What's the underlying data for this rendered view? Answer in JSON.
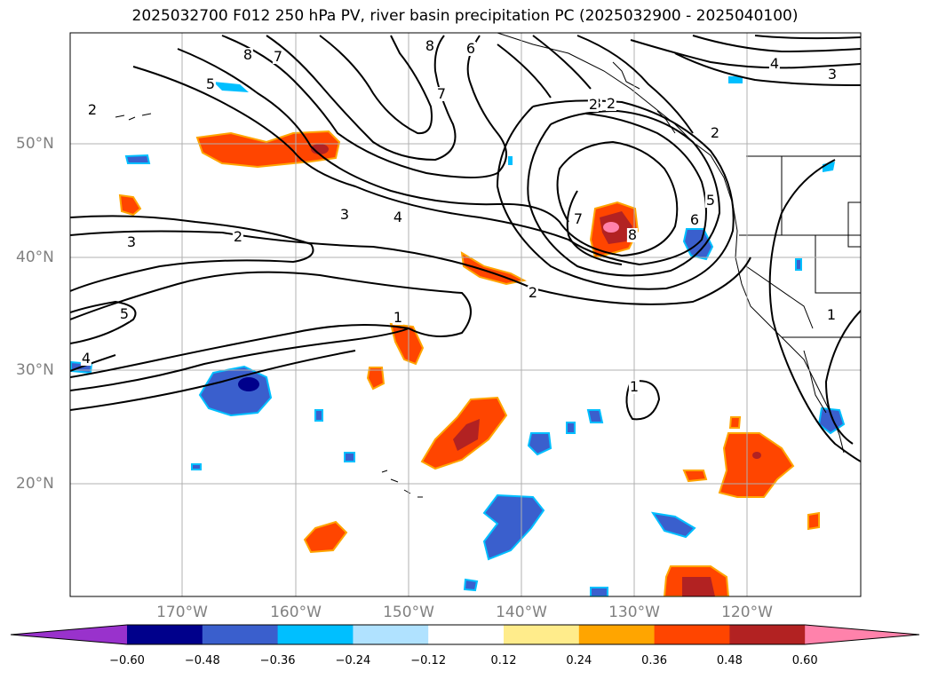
{
  "title": "2025032700 F012 250 hPa PV, river basin precipitation PC (2025032900 - 2025040100)",
  "lon_labels": [
    "170°W",
    "160°W",
    "150°W",
    "140°W",
    "130°W",
    "120°W"
  ],
  "lat_labels": [
    "50°N",
    "40°N",
    "30°N",
    "20°N"
  ],
  "contour_labels": [
    "2",
    "5",
    "8",
    "7",
    "3",
    "6",
    "8",
    "7",
    "6",
    "4",
    "3",
    "2",
    "2",
    "3",
    "4",
    "7",
    "8",
    "5",
    "6",
    "3",
    "2",
    "1",
    "5",
    "4",
    "1",
    "2",
    "1",
    "2"
  ],
  "colorbar": {
    "ticks": [
      "−0.60",
      "−0.48",
      "−0.36",
      "−0.24",
      "−0.12",
      "0.12",
      "0.24",
      "0.36",
      "0.48",
      "0.60"
    ],
    "colors": [
      "#9932cc",
      "#00008b",
      "#3a5fcd",
      "#00bfff",
      "#b0e2ff",
      "#ffffff",
      "#ffec8b",
      "#ffa500",
      "#ff4500",
      "#b22222",
      "#ff82ab"
    ]
  },
  "colors": {
    "land_line": "#000000",
    "contour": "#000000",
    "grid": "#b0b0b0",
    "label": "#808080"
  }
}
